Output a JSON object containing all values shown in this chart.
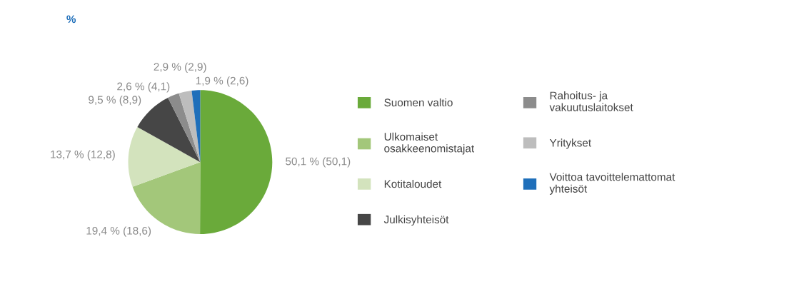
{
  "chart_data": {
    "type": "pie",
    "title": "%",
    "categories": [
      "Suomen valtio",
      "Ulkomaiset\nosakkeenomistajat",
      "Kotitaloudet",
      "Julkisyhteisöt",
      "Rahoitus- ja\nvakuutuslaitokset",
      "Yritykset",
      "Voittoa tavoittelemattomat\nyhteisöt"
    ],
    "values": [
      50.1,
      19.4,
      13.7,
      9.5,
      2.6,
      2.9,
      1.9
    ],
    "value_labels": [
      "50,1 % (50,1)",
      "19,4 % (18,6)",
      "13,7 % (12,8)",
      "9,5 % (8,9)",
      "2,6 % (4,1)",
      "2,9 % (2,9)",
      "1,9 % (2,6)"
    ],
    "colors": [
      "#6aaa3a",
      "#a3c77a",
      "#d3e3bd",
      "#464646",
      "#8c8c8c",
      "#bdbdbd",
      "#1f6fba"
    ],
    "legend": "right"
  }
}
